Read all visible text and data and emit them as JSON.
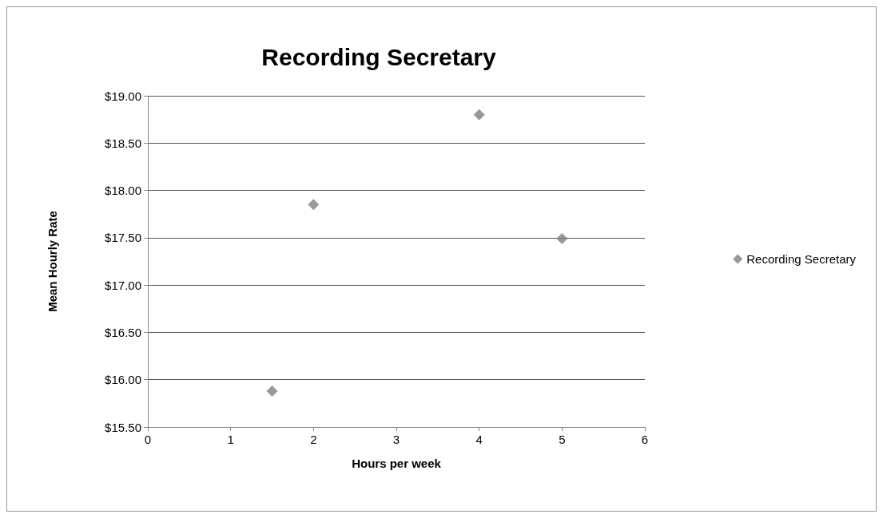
{
  "chart_data": {
    "type": "scatter",
    "title": "Recording Secretary",
    "xlabel": "Hours per week",
    "ylabel": "Mean Hourly Rate",
    "x": [
      1.5,
      2,
      4,
      5
    ],
    "series": [
      {
        "name": "Recording Secretary",
        "color": "#7f7f7f",
        "values": [
          15.88,
          17.85,
          18.8,
          17.49
        ]
      }
    ],
    "xlim": [
      0,
      6
    ],
    "xticks": [
      0,
      1,
      2,
      3,
      4,
      5,
      6
    ],
    "ylim": [
      15.5,
      19
    ],
    "yticks": [
      {
        "value": 15.5,
        "label": "$15.50"
      },
      {
        "value": 16,
        "label": "$16.00"
      },
      {
        "value": 16.5,
        "label": "$16.50"
      },
      {
        "value": 17,
        "label": "$17.00"
      },
      {
        "value": 17.5,
        "label": "$17.50"
      },
      {
        "value": 18,
        "label": "$18.00"
      },
      {
        "value": 18.5,
        "label": "$18.50"
      },
      {
        "value": 19,
        "label": "$19.00"
      }
    ],
    "grid": "y",
    "legend": "right",
    "marker": "diamond"
  }
}
